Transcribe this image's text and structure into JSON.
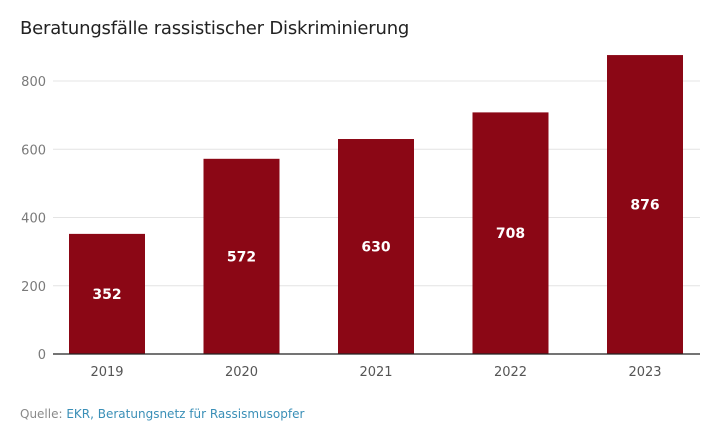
{
  "chart_data": {
    "type": "bar",
    "title": "Beratungsfälle rassistischer Diskriminierung",
    "categories": [
      "2019",
      "2020",
      "2021",
      "2022",
      "2023"
    ],
    "values": [
      352,
      572,
      630,
      708,
      876
    ],
    "data_labels": [
      "352",
      "572",
      "630",
      "708",
      "876"
    ],
    "xlabel": "",
    "ylabel": "",
    "ylim": [
      0,
      800
    ],
    "yticks": [
      0,
      200,
      400,
      600,
      800
    ],
    "ytick_labels": [
      "0",
      "200",
      "400",
      "600",
      "800"
    ],
    "grid": true,
    "legend": "none",
    "bar_color": "#8b0715",
    "label_color": "#ffffff"
  },
  "source": {
    "prefix": "Quelle: ",
    "link_text": "EKR, Beratungsnetz für Rassismusopfer"
  }
}
